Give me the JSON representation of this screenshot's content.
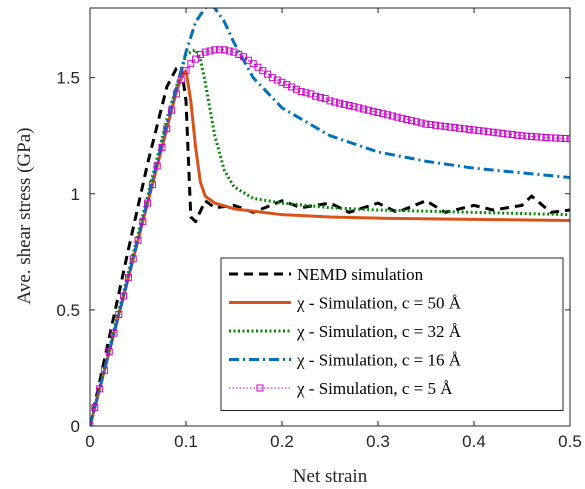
{
  "chart_data": {
    "type": "line",
    "xlabel": "Net strain",
    "ylabel": "Ave. shear stress (GPa)",
    "xlim": [
      0,
      0.5
    ],
    "ylim": [
      0,
      1.8
    ],
    "xticks": [
      "0",
      "0.1",
      "0.2",
      "0.3",
      "0.4",
      "0.5"
    ],
    "yticks": [
      "0",
      "0.5",
      "1",
      "1.5"
    ],
    "grid": false,
    "legend_position": "bottom-right",
    "series": [
      {
        "name": "NEMD simulation",
        "color": "#000000",
        "style": "dashed",
        "x": [
          0,
          0.02,
          0.04,
          0.06,
          0.08,
          0.09,
          0.095,
          0.1,
          0.105,
          0.11,
          0.12,
          0.13,
          0.15,
          0.17,
          0.2,
          0.22,
          0.25,
          0.27,
          0.3,
          0.32,
          0.35,
          0.37,
          0.4,
          0.42,
          0.45,
          0.46,
          0.48,
          0.5
        ],
        "y": [
          0,
          0.38,
          0.76,
          1.13,
          1.46,
          1.54,
          1.55,
          1.4,
          0.9,
          0.88,
          0.97,
          0.94,
          0.95,
          0.92,
          0.97,
          0.94,
          0.96,
          0.92,
          0.96,
          0.92,
          0.97,
          0.92,
          0.95,
          0.93,
          0.95,
          0.99,
          0.92,
          0.93
        ]
      },
      {
        "name": "χ - Simulation, c = 50 Å",
        "color": "#D95319",
        "style": "solid",
        "x": [
          0,
          0.02,
          0.04,
          0.06,
          0.08,
          0.09,
          0.095,
          0.1,
          0.105,
          0.11,
          0.115,
          0.12,
          0.13,
          0.15,
          0.2,
          0.25,
          0.3,
          0.4,
          0.5
        ],
        "y": [
          0,
          0.32,
          0.64,
          0.96,
          1.28,
          1.44,
          1.5,
          1.53,
          1.4,
          1.2,
          1.05,
          0.99,
          0.96,
          0.935,
          0.91,
          0.9,
          0.895,
          0.89,
          0.885
        ]
      },
      {
        "name": "χ - Simulation, c = 32 Å",
        "color": "#008A00",
        "style": "dotted",
        "x": [
          0,
          0.02,
          0.04,
          0.06,
          0.08,
          0.1,
          0.11,
          0.115,
          0.12,
          0.13,
          0.14,
          0.15,
          0.17,
          0.2,
          0.25,
          0.3,
          0.4,
          0.5
        ],
        "y": [
          0,
          0.33,
          0.66,
          0.99,
          1.32,
          1.6,
          1.62,
          1.58,
          1.48,
          1.25,
          1.1,
          1.03,
          0.98,
          0.96,
          0.94,
          0.93,
          0.92,
          0.91
        ]
      },
      {
        "name": "χ - Simulation, c = 16 Å",
        "color": "#0072BD",
        "style": "dashdot",
        "x": [
          0,
          0.02,
          0.04,
          0.06,
          0.08,
          0.1,
          0.11,
          0.12,
          0.125,
          0.13,
          0.14,
          0.15,
          0.17,
          0.2,
          0.25,
          0.3,
          0.35,
          0.4,
          0.45,
          0.5
        ],
        "y": [
          0,
          0.32,
          0.64,
          0.97,
          1.3,
          1.61,
          1.74,
          1.8,
          1.81,
          1.8,
          1.74,
          1.65,
          1.5,
          1.37,
          1.25,
          1.18,
          1.14,
          1.11,
          1.09,
          1.07
        ]
      },
      {
        "name": "χ - Simulation, c = 5 Å",
        "color": "#CC00CC",
        "style": "dotted-square-markers",
        "x": [
          0,
          0.005,
          0.01,
          0.015,
          0.02,
          0.025,
          0.03,
          0.035,
          0.04,
          0.045,
          0.05,
          0.055,
          0.06,
          0.065,
          0.07,
          0.075,
          0.08,
          0.085,
          0.09,
          0.095,
          0.1,
          0.105,
          0.11,
          0.115,
          0.12,
          0.125,
          0.13,
          0.135,
          0.14,
          0.145,
          0.15,
          0.155,
          0.16,
          0.165,
          0.17,
          0.175,
          0.18,
          0.185,
          0.19,
          0.195,
          0.2,
          0.205,
          0.21,
          0.215,
          0.22,
          0.225,
          0.23,
          0.235,
          0.24,
          0.245,
          0.25,
          0.255,
          0.26,
          0.265,
          0.27,
          0.275,
          0.28,
          0.285,
          0.29,
          0.295,
          0.3,
          0.305,
          0.31,
          0.315,
          0.32,
          0.325,
          0.33,
          0.335,
          0.34,
          0.345,
          0.35,
          0.355,
          0.36,
          0.365,
          0.37,
          0.375,
          0.38,
          0.385,
          0.39,
          0.395,
          0.4,
          0.405,
          0.41,
          0.415,
          0.42,
          0.425,
          0.43,
          0.435,
          0.44,
          0.445,
          0.45,
          0.455,
          0.46,
          0.465,
          0.47,
          0.475,
          0.48,
          0.485,
          0.49,
          0.495,
          0.5
        ],
        "y": [
          0,
          0.08,
          0.16,
          0.24,
          0.32,
          0.4,
          0.48,
          0.56,
          0.64,
          0.72,
          0.8,
          0.88,
          0.96,
          1.04,
          1.12,
          1.2,
          1.28,
          1.36,
          1.43,
          1.49,
          1.53,
          1.56,
          1.58,
          1.6,
          1.61,
          1.615,
          1.62,
          1.62,
          1.62,
          1.615,
          1.61,
          1.6,
          1.59,
          1.575,
          1.56,
          1.545,
          1.53,
          1.515,
          1.5,
          1.49,
          1.48,
          1.47,
          1.46,
          1.45,
          1.44,
          1.435,
          1.43,
          1.42,
          1.415,
          1.41,
          1.4,
          1.395,
          1.39,
          1.385,
          1.38,
          1.375,
          1.37,
          1.365,
          1.36,
          1.355,
          1.35,
          1.345,
          1.34,
          1.335,
          1.33,
          1.325,
          1.32,
          1.315,
          1.31,
          1.305,
          1.3,
          1.298,
          1.295,
          1.292,
          1.29,
          1.287,
          1.285,
          1.282,
          1.28,
          1.277,
          1.275,
          1.272,
          1.27,
          1.267,
          1.265,
          1.262,
          1.26,
          1.257,
          1.255,
          1.252,
          1.25,
          1.248,
          1.247,
          1.245,
          1.244,
          1.242,
          1.241,
          1.24,
          1.239,
          1.238,
          1.237
        ]
      }
    ]
  }
}
